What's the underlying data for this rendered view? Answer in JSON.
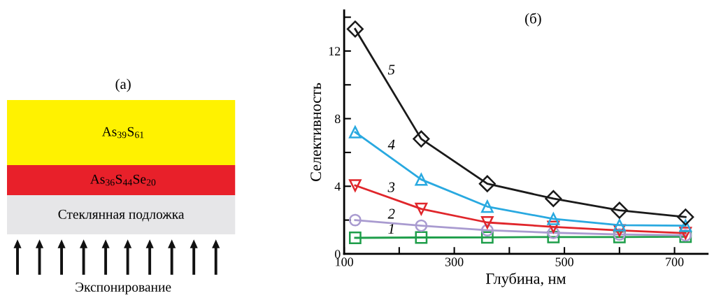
{
  "chart_data": [
    {
      "type": "other",
      "title": "(а)",
      "annotations": [
        "As$_{39}$S$_{61}$",
        "As$_{36}$S$_{44}$Se$_{20}$",
        "Стеклянная подложка",
        "Экспонирование"
      ]
    },
    {
      "type": "line",
      "title": "(б)",
      "xlabel": "Глубина, нм",
      "ylabel": "Селективность",
      "xlim": [
        100,
        760
      ],
      "xticks": [
        100,
        {
          "value": 200,
          "label": null
        },
        300,
        {
          "value": 400,
          "label": null
        },
        500,
        {
          "value": 600,
          "label": null
        },
        700
      ],
      "ylim": [
        0,
        14.4
      ],
      "yticks": [
        0,
        {
          "value": 2,
          "label": null
        },
        4,
        {
          "value": 6,
          "label": null
        },
        8,
        {
          "value": 10,
          "label": null
        },
        12,
        {
          "value": 14,
          "label": null
        }
      ],
      "grid": false,
      "legend": false,
      "x": [
        120,
        240,
        360,
        480,
        600,
        720
      ],
      "series": [
        {
          "name": "1",
          "color": "#1e9e4a",
          "marker": "square",
          "values": [
            0.95,
            0.97,
            0.98,
            1.0,
            1.0,
            1.02
          ]
        },
        {
          "name": "2",
          "color": "#a99bd0",
          "marker": "circle",
          "values": [
            2.0,
            1.67,
            1.4,
            1.25,
            1.15,
            1.1
          ]
        },
        {
          "name": "3",
          "color": "#e0262b",
          "marker": "triangle_down",
          "values": [
            4.05,
            2.66,
            1.86,
            1.6,
            1.39,
            1.23
          ]
        },
        {
          "name": "4",
          "color": "#29a9e0",
          "marker": "triangle",
          "values": [
            7.2,
            4.4,
            2.8,
            2.07,
            1.7,
            1.67
          ]
        },
        {
          "name": "5",
          "color": "#1a1a1a",
          "marker": "diamond",
          "values": [
            13.3,
            6.8,
            4.15,
            3.27,
            2.58,
            2.18
          ]
        }
      ]
    }
  ]
}
